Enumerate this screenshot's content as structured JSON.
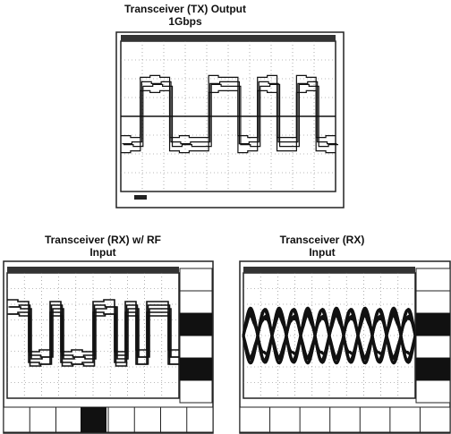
{
  "figures": [
    {
      "title": [
        "Transceiver (TX) Output",
        "1Gbps"
      ]
    },
    {
      "title": [
        "Transceiver (RX) w/ RF",
        "Input"
      ]
    },
    {
      "title": [
        "Transceiver (RX)",
        "Input"
      ]
    }
  ]
}
